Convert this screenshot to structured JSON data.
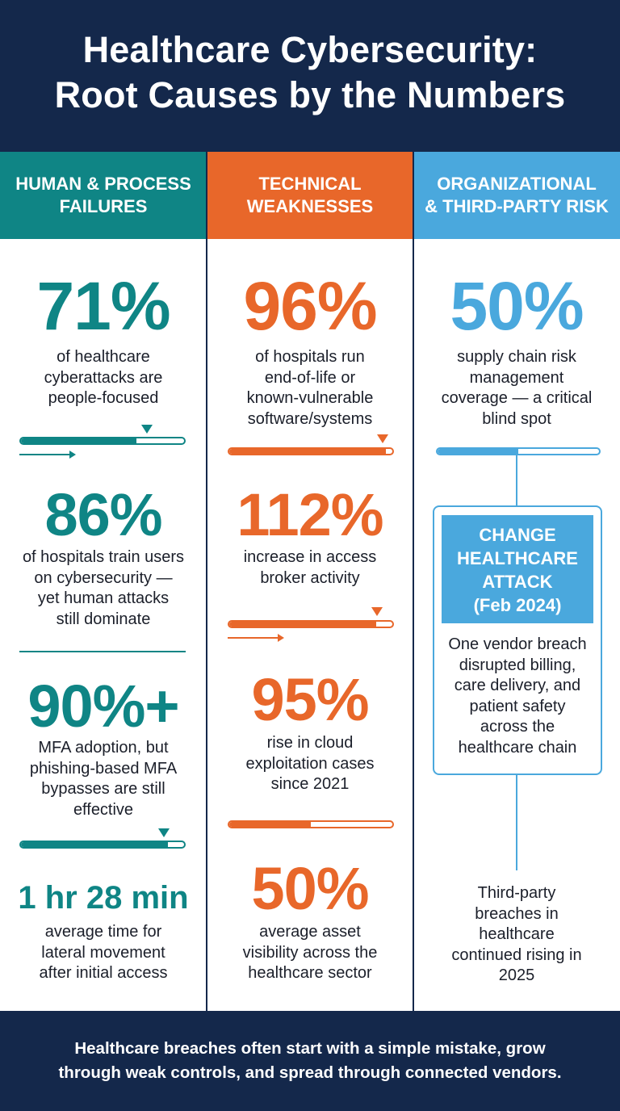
{
  "title": "Healthcare Cybersecurity:\nRoot Causes by the Numbers",
  "columns": [
    {
      "heading": "HUMAN & PROCESS\nFAILURES",
      "color": "#0f8585"
    },
    {
      "heading": "TECHNICAL\nWEAKNESSES",
      "color": "#e8672a"
    },
    {
      "heading": "ORGANIZATIONAL\n& THIRD-PARTY RISK",
      "color": "#4aa8dd"
    }
  ],
  "human": {
    "stat1": {
      "value": "71%",
      "text": "of healthcare\ncyberattacks are\npeople-focused",
      "bar_level": 0.71
    },
    "stat2": {
      "value": "86%",
      "text": "of hospitals train users\non cybersecurity —\nyet human attacks\nstill dominate"
    },
    "stat3": {
      "value": "90%+",
      "text": "MFA adoption, but\nphishing-based MFA\nbypasses are still\neffective",
      "bar_level": 0.9
    },
    "stat4": {
      "value": "1 hr 28 min",
      "text": "average time for\nlateral movement\nafter initial access"
    }
  },
  "technical": {
    "stat1": {
      "value": "96%",
      "text": "of hospitals run\nend-of-life or\nknown-vulnerable\nsoftware/systems",
      "bar_level": 0.96
    },
    "stat2": {
      "value": "112%",
      "text": "increase in access\nbroker activity",
      "bar_level": 0.9
    },
    "stat3": {
      "value": "95%",
      "text": "rise in cloud\nexploitation cases\nsince 2021",
      "bar_level": 0.5
    },
    "stat4": {
      "value": "50%",
      "text": "average asset\nvisibility across the\nhealthcare sector"
    }
  },
  "org": {
    "stat1": {
      "value": "50%",
      "text": "supply chain risk\nmanagement\ncoverage — a critical\nblind spot",
      "bar_level": 0.5
    },
    "callout": {
      "heading": "CHANGE\nHEALTHCARE\nATTACK\n(Feb 2024)",
      "text": "One vendor breach\ndisrupted billing,\ncare delivery, and\npatient safety\nacross the\nhealthcare chain"
    },
    "note": "Third-party\nbreaches in\nhealthcare\ncontinued rising in\n2025"
  },
  "footer": "Healthcare breaches often start with a simple mistake, grow\nthrough weak controls, and spread through connected vendors."
}
